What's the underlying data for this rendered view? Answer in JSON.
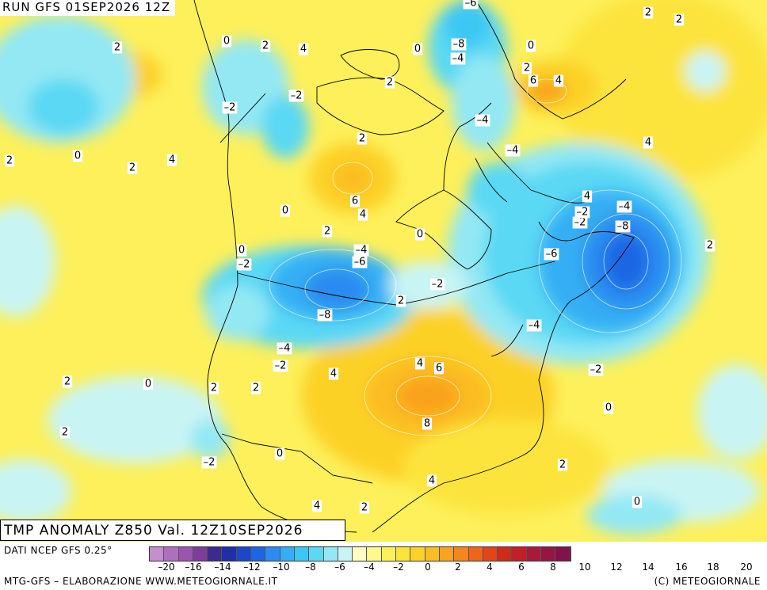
{
  "run_title": "RUN GFS 01SEP2026 12Z",
  "anomaly_title": "TMP ANOMALY Z850 Val. 12Z10SEP2026",
  "source_note": "DATI NCEP GFS 0.25°",
  "credit_left": "MTG-GFS – ELABORAZIONE WWW.METEOGIORNALE.IT",
  "credit_right": "(C) METEOGIORNALE",
  "colorbar": {
    "ticks": [
      "-20",
      "-18",
      "-16",
      "-14",
      "-12",
      "-10",
      "-8",
      "-6",
      "-4",
      "-2",
      "0",
      "2",
      "4",
      "6",
      "8",
      "10",
      "12",
      "14",
      "16",
      "18",
      "20"
    ],
    "tick_labels_shown": [
      "–20",
      "–16",
      "–14",
      "–12",
      "–10",
      "–8",
      "–6",
      "–4",
      "–2",
      "0",
      "2",
      "4",
      "6",
      "8",
      "10",
      "12",
      "14",
      "16",
      "18",
      "20"
    ],
    "colors": [
      "#c68ed0",
      "#ad6fbe",
      "#9a55ae",
      "#7e3d9b",
      "#3c2a8f",
      "#1f2fa8",
      "#1c47c8",
      "#1d66e3",
      "#2c8bf0",
      "#34aef4",
      "#3dc7f4",
      "#5ad8f4",
      "#93e8f4",
      "#c9f4f4",
      "#fcfcc4",
      "#fdfa8a",
      "#fdf05b",
      "#fce43c",
      "#fcd128",
      "#fbbd22",
      "#f9a31e",
      "#f5861b",
      "#ef6519",
      "#e34418",
      "#cf2a1a",
      "#c01f2c",
      "#a91a3a",
      "#951642",
      "#81134a"
    ]
  },
  "map_labels": [
    {
      "text": "2"
    },
    {
      "text": "0"
    },
    {
      "text": "2"
    },
    {
      "text": "4"
    },
    {
      "text": "–6"
    },
    {
      "text": "2"
    },
    {
      "text": "2"
    },
    {
      "text": "–2"
    },
    {
      "text": "–2"
    },
    {
      "text": "0"
    },
    {
      "text": "2"
    },
    {
      "text": "4"
    },
    {
      "text": "–8"
    },
    {
      "text": "–4"
    },
    {
      "text": "0"
    },
    {
      "text": "2"
    },
    {
      "text": "6"
    },
    {
      "text": "4"
    },
    {
      "text": "2"
    },
    {
      "text": "–4"
    },
    {
      "text": "–4"
    },
    {
      "text": "4"
    },
    {
      "text": "2"
    },
    {
      "text": "0"
    },
    {
      "text": "0"
    },
    {
      "text": "6"
    },
    {
      "text": "4"
    },
    {
      "text": "2"
    },
    {
      "text": "0"
    },
    {
      "text": "4"
    },
    {
      "text": "–2"
    },
    {
      "text": "–4"
    },
    {
      "text": "–2"
    },
    {
      "text": "–8"
    },
    {
      "text": "–4"
    },
    {
      "text": "–6"
    },
    {
      "text": "0"
    },
    {
      "text": "–2"
    },
    {
      "text": "2"
    },
    {
      "text": "–8"
    },
    {
      "text": "–6"
    },
    {
      "text": "2"
    },
    {
      "text": "–2"
    },
    {
      "text": "–4"
    },
    {
      "text": "–4"
    },
    {
      "text": "–2"
    },
    {
      "text": "4"
    },
    {
      "text": "4"
    },
    {
      "text": "6"
    },
    {
      "text": "2"
    },
    {
      "text": "0"
    },
    {
      "text": "2"
    },
    {
      "text": "2"
    },
    {
      "text": "8"
    },
    {
      "text": "0"
    },
    {
      "text": "2"
    },
    {
      "text": "–2"
    },
    {
      "text": "0"
    },
    {
      "text": "4"
    },
    {
      "text": "4"
    },
    {
      "text": "2"
    },
    {
      "text": "0"
    },
    {
      "text": "–2"
    },
    {
      "text": "2"
    },
    {
      "text": "2"
    }
  ]
}
